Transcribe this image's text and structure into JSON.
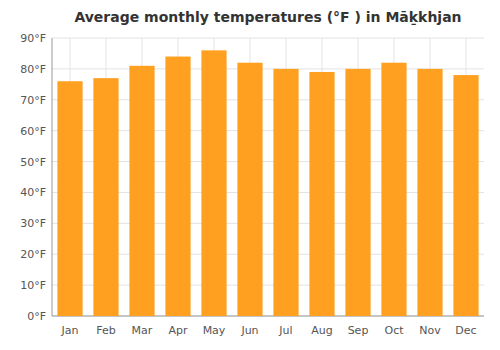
{
  "chart_data": {
    "type": "bar",
    "title": "Average monthly temperatures (°F ) in Māḵkhjan",
    "categories": [
      "Jan",
      "Feb",
      "Mar",
      "Apr",
      "May",
      "Jun",
      "Jul",
      "Aug",
      "Sep",
      "Oct",
      "Nov",
      "Dec"
    ],
    "values": [
      76,
      77,
      81,
      84,
      86,
      82,
      80,
      79,
      80,
      82,
      80,
      78
    ],
    "color": "#FFA020",
    "ylim": [
      0,
      90
    ],
    "yticks": [
      {
        "value": 0,
        "label": "0°F"
      },
      {
        "value": 10,
        "label": "10°F"
      },
      {
        "value": 20,
        "label": "20°F"
      },
      {
        "value": 30,
        "label": "30°F"
      },
      {
        "value": 40,
        "label": "40°F"
      },
      {
        "value": 50,
        "label": "50°F"
      },
      {
        "value": 60,
        "label": "60°F"
      },
      {
        "value": 70,
        "label": "70°F"
      },
      {
        "value": 80,
        "label": "80°F"
      },
      {
        "value": 90,
        "label": "90°F"
      }
    ],
    "grid": true
  }
}
